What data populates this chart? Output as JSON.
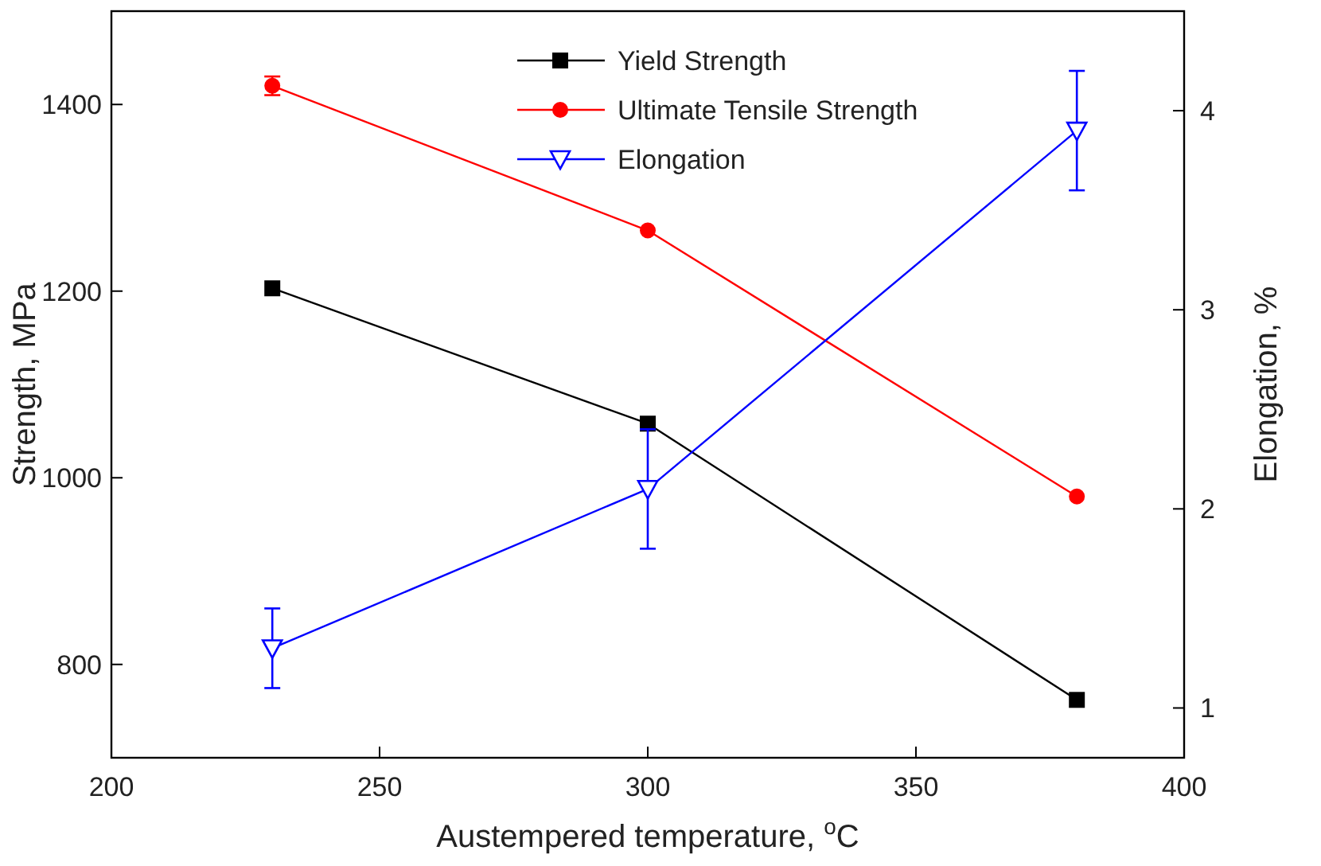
{
  "chart_data": {
    "type": "line",
    "xlabel": "Austempered temperature, $^{o}$C",
    "ylabel": "Strength, MPa",
    "y2label": "Elongation, %",
    "x": [
      230,
      300,
      380
    ],
    "series": [
      {
        "name": "Yield Strength",
        "color": "#000000",
        "marker": "square",
        "values": [
          1203,
          1058,
          762
        ]
      },
      {
        "name": "Ultimate Tensile Strength",
        "color": "#ff0000",
        "marker": "circle",
        "values": [
          1420,
          1265,
          980
        ],
        "errors": [
          10,
          null,
          null
        ]
      },
      {
        "name": "Elongation",
        "color": "#0000ff",
        "marker": "triangle",
        "axis": "y2",
        "values": [
          1.3,
          2.1,
          3.9
        ],
        "errors": [
          0.2,
          0.3,
          0.3
        ]
      }
    ],
    "xlim": [
      200,
      400
    ],
    "xticks": [
      200,
      250,
      300,
      350,
      400
    ],
    "ylim": [
      700,
      1500
    ],
    "yticks": [
      800,
      1000,
      1200,
      1400
    ],
    "y2lim": [
      0.75,
      4.5
    ],
    "y2ticks": [
      1,
      2,
      3,
      4
    ],
    "legend": "top",
    "grid": false
  }
}
